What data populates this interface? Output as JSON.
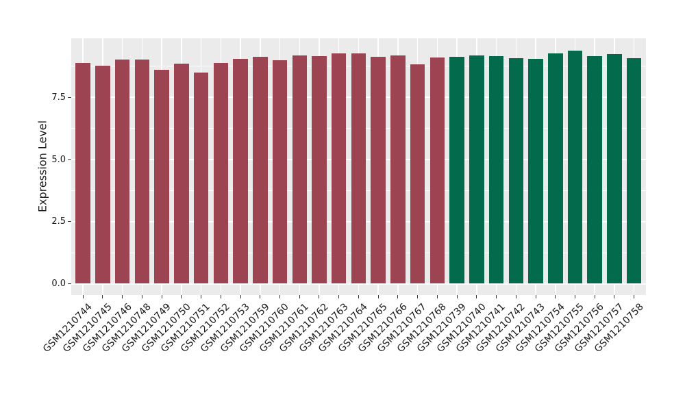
{
  "chart_data": {
    "type": "bar",
    "ylabel": "Expression Level",
    "xlabel": "",
    "legend": "none",
    "grid": "major and minor horizontal white gridlines plus vertical white gridlines at each category, on grey panel",
    "ylim": [
      0,
      9.88
    ],
    "ytick_labels": [
      "0.0",
      "2.5",
      "5.0",
      "7.5"
    ],
    "ytick_values": [
      0,
      2.5,
      5.0,
      7.5
    ],
    "minor_gridline_values": [
      1.25,
      3.75,
      6.25,
      8.75
    ],
    "categories": [
      "GSM1210744",
      "GSM1210745",
      "GSM1210746",
      "GSM1210748",
      "GSM1210749",
      "GSM1210750",
      "GSM1210751",
      "GSM1210752",
      "GSM1210753",
      "GSM1210759",
      "GSM1210760",
      "GSM1210761",
      "GSM1210762",
      "GSM1210763",
      "GSM1210764",
      "GSM1210765",
      "GSM1210766",
      "GSM1210767",
      "GSM1210768",
      "GSM1210739",
      "GSM1210740",
      "GSM1210741",
      "GSM1210742",
      "GSM1210743",
      "GSM1210754",
      "GSM1210755",
      "GSM1210756",
      "GSM1210757",
      "GSM1210758"
    ],
    "values": [
      8.89,
      8.78,
      9.02,
      9.01,
      8.6,
      8.86,
      8.49,
      8.88,
      9.06,
      9.13,
      9.0,
      9.18,
      9.15,
      9.27,
      9.26,
      9.13,
      9.18,
      8.83,
      9.11,
      9.13,
      9.19,
      9.15,
      9.09,
      9.04,
      9.26,
      9.39,
      9.15,
      9.25,
      9.07
    ],
    "groups": [
      0,
      0,
      0,
      0,
      0,
      0,
      0,
      0,
      0,
      0,
      0,
      0,
      0,
      0,
      0,
      0,
      0,
      0,
      0,
      1,
      1,
      1,
      1,
      1,
      1,
      1,
      1,
      1,
      1
    ],
    "group_colors": [
      "#9C4452",
      "#036A4C"
    ],
    "colors": {
      "background": "#FFFFFF",
      "panel_bg": "#EBEBEB",
      "gridline": "#FFFFFF",
      "axis_text": "#1A1A1A",
      "tick_mark": "#333333"
    }
  }
}
